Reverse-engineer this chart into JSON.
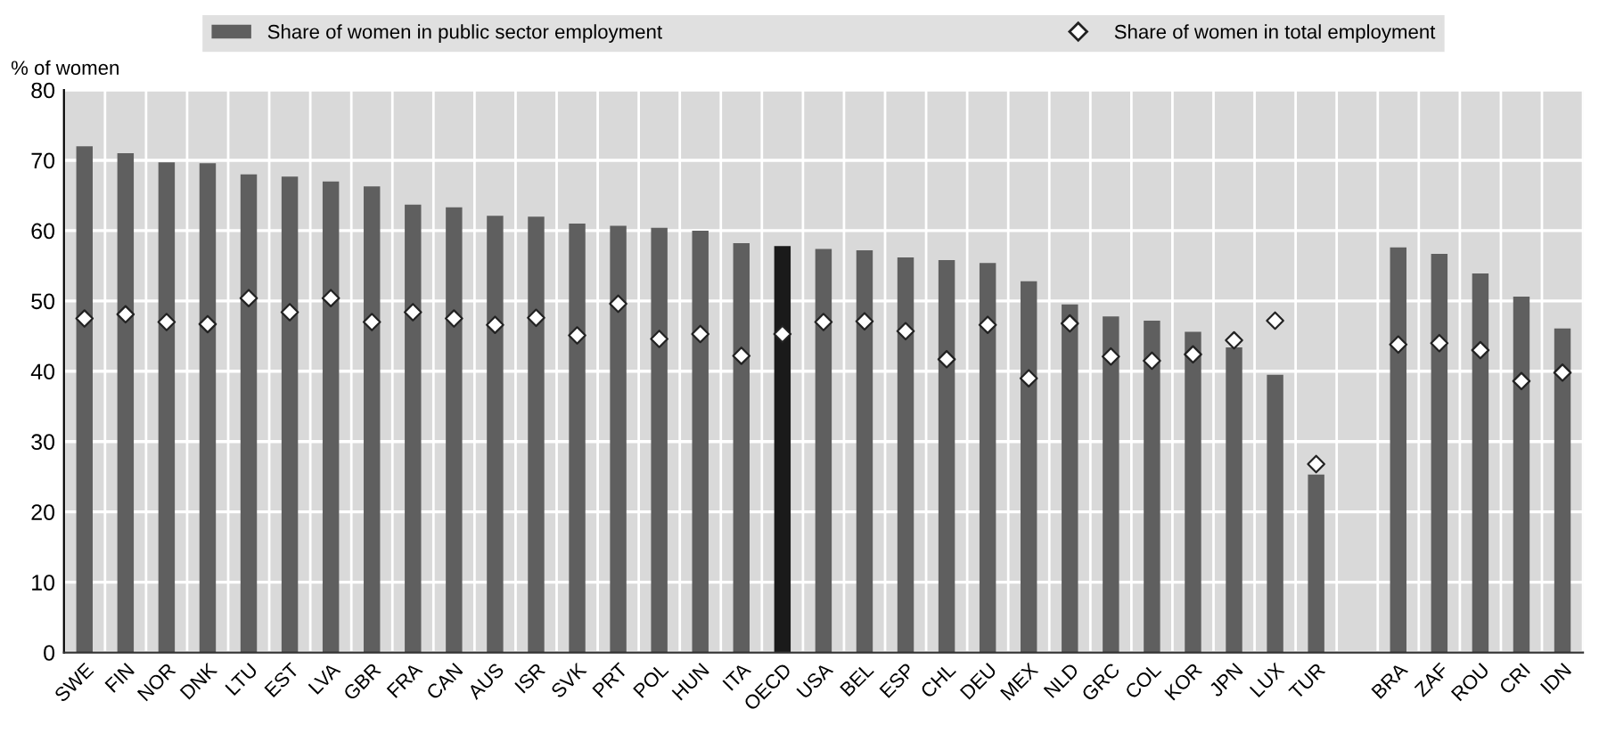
{
  "chart_data": {
    "type": "bar",
    "ylabel": "% of women",
    "categories": [
      "SWE",
      "FIN",
      "NOR",
      "DNK",
      "LTU",
      "EST",
      "LVA",
      "GBR",
      "FRA",
      "CAN",
      "AUS",
      "ISR",
      "SVK",
      "PRT",
      "POL",
      "HUN",
      "ITA",
      "OECD",
      "USA",
      "BEL",
      "ESP",
      "CHL",
      "DEU",
      "MEX",
      "NLD",
      "GRC",
      "COL",
      "KOR",
      "JPN",
      "LUX",
      "TUR",
      null,
      "BRA",
      "ZAF",
      "ROU",
      "CRI",
      "IDN"
    ],
    "series": [
      {
        "name": "Share of women in public sector employment",
        "color": "#5f5f5f",
        "colors": [
          "#5f5f5f",
          "#5f5f5f",
          "#5f5f5f",
          "#5f5f5f",
          "#5f5f5f",
          "#5f5f5f",
          "#5f5f5f",
          "#5f5f5f",
          "#5f5f5f",
          "#5f5f5f",
          "#5f5f5f",
          "#5f5f5f",
          "#5f5f5f",
          "#5f5f5f",
          "#5f5f5f",
          "#5f5f5f",
          "#5f5f5f",
          "#1a1a1a",
          "#5f5f5f",
          "#5f5f5f",
          "#5f5f5f",
          "#5f5f5f",
          "#5f5f5f",
          "#5f5f5f",
          "#5f5f5f",
          "#5f5f5f",
          "#5f5f5f",
          "#5f5f5f",
          "#5f5f5f",
          "#5f5f5f",
          "#5f5f5f",
          "#5f5f5f",
          "#5f5f5f",
          "#5f5f5f",
          "#5f5f5f",
          "#5f5f5f",
          "#5f5f5f"
        ],
        "values": [
          72,
          71,
          69.7,
          69.6,
          68,
          67.7,
          67,
          66.3,
          63.7,
          63.3,
          62.1,
          62,
          61,
          60.7,
          60.4,
          60,
          58.2,
          57.8,
          57.4,
          57.2,
          56.2,
          55.8,
          55.4,
          52.8,
          49.5,
          47.8,
          47.2,
          45.6,
          43.4,
          39.5,
          25.3,
          null,
          57.6,
          56.7,
          53.9,
          50.6,
          46.1
        ]
      },
      {
        "name": "Share of women in total employment",
        "type": "scatter",
        "color": "#ffffff",
        "marker": "diamond",
        "values": [
          47.5,
          48.1,
          47,
          46.7,
          50.4,
          48.4,
          50.4,
          47,
          48.4,
          47.5,
          46.6,
          47.6,
          45.1,
          49.6,
          44.6,
          45.3,
          42.2,
          45.3,
          47,
          47.1,
          45.7,
          41.7,
          46.6,
          39,
          46.8,
          42.1,
          41.5,
          42.4,
          44.4,
          47.2,
          26.8,
          null,
          43.8,
          44,
          43,
          38.6,
          39.8
        ]
      }
    ],
    "ylim": [
      0,
      80
    ],
    "yticks": [
      0,
      10,
      20,
      30,
      40,
      50,
      60,
      70,
      80
    ],
    "grid": true,
    "legend": "top"
  }
}
